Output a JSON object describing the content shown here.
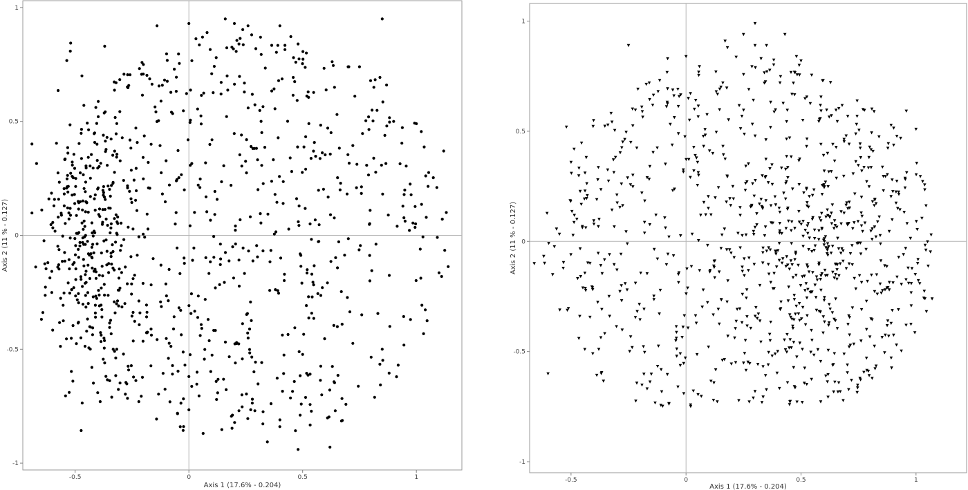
{
  "chart_data": [
    {
      "type": "scatter",
      "marker": "circle",
      "color": "#000000",
      "xlabel": "Axis 1 (17.6% - 0.204)",
      "ylabel": "Axis 2 (11 % - 0.127)",
      "xlim": [
        -0.73,
        1.2
      ],
      "ylim": [
        -1.03,
        1.03
      ],
      "x_ticks": [
        -0.5,
        0,
        0.5,
        1
      ],
      "y_ticks": [
        -1,
        -0.5,
        0,
        0.5,
        1
      ],
      "x_tick_labels": [
        "-0.5",
        "0",
        "0.5",
        "1"
      ],
      "y_tick_labels": [
        "-1",
        "-0.5",
        "0",
        "0.5",
        "1"
      ],
      "grid": false,
      "zero_lines": true,
      "point_count": 1000,
      "x": [
        0.16,
        0.85,
        0.26,
        0.4,
        0.2,
        0.0,
        1.12,
        1.09,
        -0.37,
        -0.39,
        0.48,
        0.7,
        0.62,
        0.92,
        0.4,
        0.48,
        0.22,
        -0.14,
        0.06,
        0.08,
        -0.47,
        0.12,
        0.22,
        0.47,
        -0.51,
        -0.09,
        0.05,
        -0.37,
        -0.22,
        0.46,
        -0.2,
        0.85,
        0.87,
        -0.32,
        -0.62,
        1.0,
        0.29,
        0.0,
        0.64,
        0.9,
        0.79,
        0.75
      ],
      "y": [
        0.95,
        0.95,
        0.92,
        0.92,
        0.93,
        0.93,
        0.37,
        0.21,
        0.83,
        -0.73,
        0.84,
        0.74,
        -0.93,
        -0.57,
        -0.81,
        -0.94,
        -0.77,
        0.92,
        0.87,
        0.89,
        0.7,
        0.78,
        0.84,
        0.76,
        -0.64,
        -0.54,
        -0.44,
        -0.56,
        -0.73,
        0.78,
        0.75,
        -0.5,
        0.48,
        0.67,
        -0.12,
        0.49,
        -0.77,
        -0.62,
        0.65,
        0.5,
        0.52,
        0.74
      ]
    },
    {
      "type": "scatter",
      "marker": "triangle-down",
      "color": "#000000",
      "xlabel": "Axis 1 (17.6% - 0.204)",
      "ylabel": "Axis 2 (11 % - 0.127)",
      "xlim": [
        -0.68,
        1.22
      ],
      "ylim": [
        -1.05,
        1.08
      ],
      "x_ticks": [
        -0.5,
        0,
        0.5,
        1
      ],
      "y_ticks": [
        -1,
        -0.5,
        0,
        0.5,
        1
      ],
      "x_tick_labels": [
        "-0.5",
        "0",
        "0.5",
        "1"
      ],
      "y_tick_labels": [
        "-1",
        "-0.5",
        "0",
        "0.5",
        "1"
      ],
      "grid": false,
      "zero_lines": true,
      "point_count": 1000,
      "x": [
        0.3,
        0.25,
        0.43,
        0.17,
        0.18,
        -0.25,
        -0.08,
        0.0,
        0.3,
        0.35,
        0.48,
        0.5,
        1.07,
        1.0,
        -0.66,
        -0.6,
        -0.52,
        -0.5,
        0.62,
        -0.01,
        0.33,
        0.45,
        0.3,
        -0.19,
        -0.16,
        0.13,
        0.16
      ],
      "y": [
        0.99,
        0.94,
        0.94,
        0.91,
        0.88,
        0.89,
        0.83,
        0.84,
        0.89,
        0.89,
        0.84,
        0.82,
        -0.26,
        0.51,
        -0.1,
        -0.6,
        0.52,
        0.36,
        -0.38,
        -0.69,
        -0.73,
        -0.74,
        -0.68,
        0.59,
        0.72,
        0.77,
        0.72
      ]
    }
  ]
}
